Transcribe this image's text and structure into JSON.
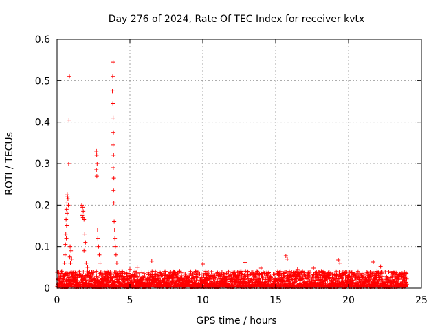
{
  "chart_data": {
    "type": "scatter",
    "title": "Day 276 of 2024, Rate Of TEC Index for receiver kvtx",
    "xlabel": "GPS time / hours",
    "ylabel": "ROTI / TECUs",
    "xlim": [
      0,
      25
    ],
    "ylim": [
      0,
      0.6
    ],
    "x_ticks": [
      "0",
      "5",
      "10",
      "15",
      "20",
      "25"
    ],
    "y_ticks": [
      "0",
      "0.1",
      "0.2",
      "0.3",
      "0.4",
      "0.5",
      "0.6"
    ],
    "grid": true,
    "marker": "plus",
    "color": "#ff0000",
    "series": [
      {
        "name": "ROTI",
        "points": [
          [
            0.85,
            0.51
          ],
          [
            0.82,
            0.405
          ],
          [
            0.8,
            0.3
          ],
          [
            0.7,
            0.225
          ],
          [
            0.72,
            0.22
          ],
          [
            0.75,
            0.215
          ],
          [
            0.68,
            0.205
          ],
          [
            0.78,
            0.2
          ],
          [
            0.65,
            0.19
          ],
          [
            0.7,
            0.18
          ],
          [
            0.62,
            0.165
          ],
          [
            0.66,
            0.15
          ],
          [
            0.6,
            0.13
          ],
          [
            0.64,
            0.12
          ],
          [
            0.58,
            0.105
          ],
          [
            0.9,
            0.1
          ],
          [
            0.95,
            0.09
          ],
          [
            0.88,
            0.075
          ],
          [
            1.0,
            0.07
          ],
          [
            0.92,
            0.06
          ],
          [
            0.55,
            0.08
          ],
          [
            0.5,
            0.06
          ],
          [
            1.7,
            0.2
          ],
          [
            1.75,
            0.195
          ],
          [
            1.8,
            0.185
          ],
          [
            1.72,
            0.175
          ],
          [
            1.78,
            0.17
          ],
          [
            1.85,
            0.165
          ],
          [
            1.9,
            0.13
          ],
          [
            1.95,
            0.11
          ],
          [
            1.85,
            0.09
          ],
          [
            2.0,
            0.06
          ],
          [
            2.1,
            0.05
          ],
          [
            2.7,
            0.33
          ],
          [
            2.72,
            0.32
          ],
          [
            2.75,
            0.3
          ],
          [
            2.7,
            0.285
          ],
          [
            2.73,
            0.27
          ],
          [
            2.78,
            0.14
          ],
          [
            2.8,
            0.12
          ],
          [
            2.85,
            0.1
          ],
          [
            2.9,
            0.08
          ],
          [
            2.95,
            0.06
          ],
          [
            3.85,
            0.545
          ],
          [
            3.82,
            0.51
          ],
          [
            3.8,
            0.475
          ],
          [
            3.83,
            0.445
          ],
          [
            3.85,
            0.41
          ],
          [
            3.87,
            0.375
          ],
          [
            3.85,
            0.345
          ],
          [
            3.88,
            0.32
          ],
          [
            3.86,
            0.29
          ],
          [
            3.9,
            0.265
          ],
          [
            3.88,
            0.235
          ],
          [
            3.9,
            0.205
          ],
          [
            3.92,
            0.16
          ],
          [
            3.95,
            0.14
          ],
          [
            3.97,
            0.12
          ],
          [
            4.0,
            0.1
          ],
          [
            4.05,
            0.08
          ],
          [
            4.1,
            0.06
          ],
          [
            10.0,
            0.058
          ],
          [
            5.0,
            0.045
          ],
          [
            5.5,
            0.05
          ],
          [
            6.5,
            0.065
          ],
          [
            12.9,
            0.062
          ],
          [
            14.0,
            0.048
          ],
          [
            15.7,
            0.078
          ],
          [
            15.8,
            0.07
          ],
          [
            16.5,
            0.045
          ],
          [
            17.6,
            0.048
          ],
          [
            19.3,
            0.068
          ],
          [
            19.4,
            0.06
          ],
          [
            21.7,
            0.063
          ],
          [
            22.2,
            0.052
          ],
          [
            18.3,
            0.04
          ]
        ]
      }
    ],
    "baseline_band": {
      "description": "dense points between 0 and ~0.04 across 0-24 h",
      "x_range": [
        0,
        24
      ],
      "y_range": [
        0.0,
        0.04
      ]
    }
  }
}
